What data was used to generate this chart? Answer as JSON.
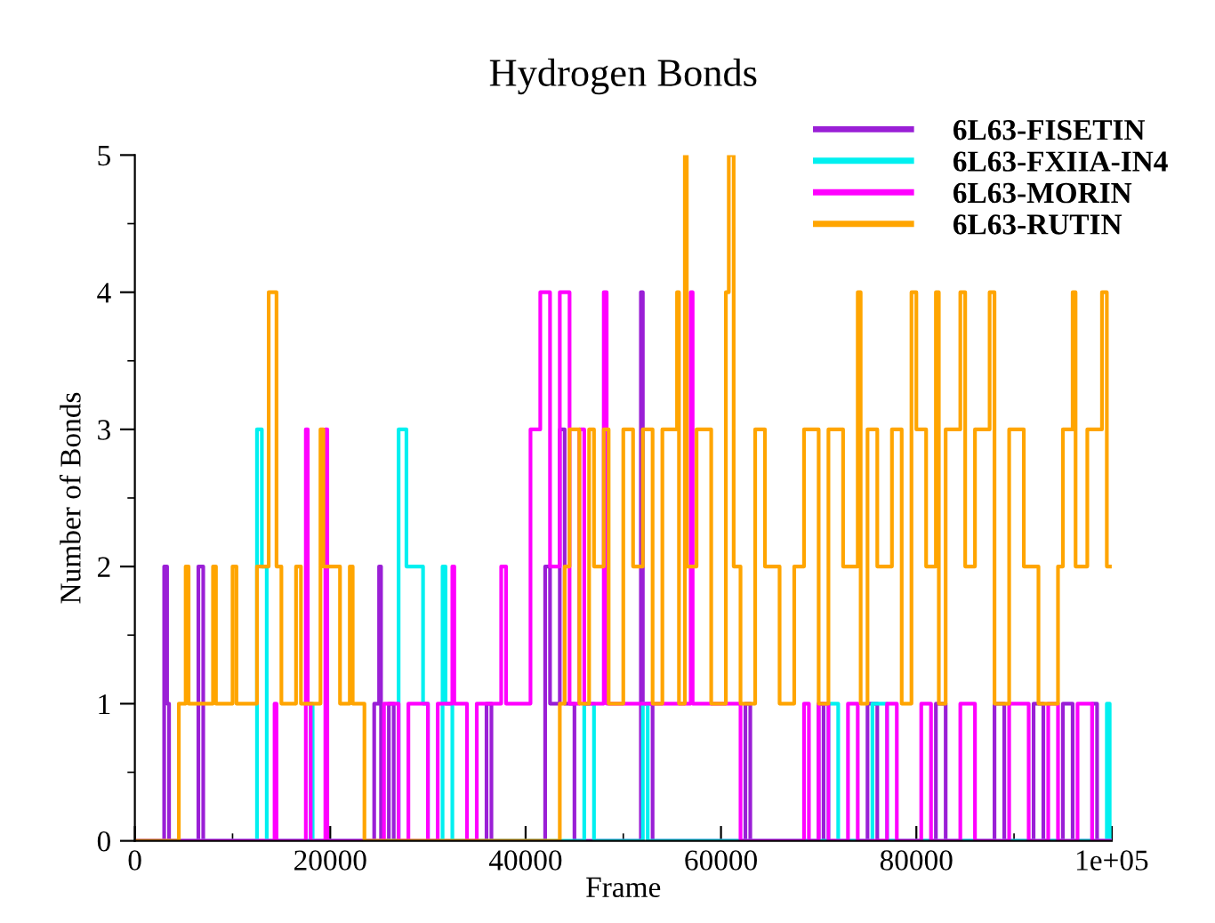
{
  "chart_data": {
    "type": "step",
    "title": "Hydrogen Bonds",
    "xlabel": "Frame",
    "ylabel": "Number of Bonds",
    "xlim": [
      0,
      100000
    ],
    "ylim": [
      0,
      5
    ],
    "xticks": [
      0,
      {
        "value": 10000,
        "label": null
      },
      20000,
      {
        "value": 30000,
        "label": null
      },
      40000,
      {
        "value": 50000,
        "label": null
      },
      60000,
      {
        "value": 70000,
        "label": null
      },
      80000,
      {
        "value": 90000,
        "label": null
      },
      {
        "value": 100000,
        "label": "1e+05"
      }
    ],
    "yticks": [
      0,
      {
        "value": 0.5,
        "label": null
      },
      1,
      {
        "value": 1.5,
        "label": null
      },
      2,
      {
        "value": 2.5,
        "label": null
      },
      3,
      {
        "value": 3.5,
        "label": null
      },
      4,
      {
        "value": 4.5,
        "label": null
      },
      5
    ],
    "grid": false,
    "legend": "top right",
    "series": [
      {
        "name": "6L63-FISETIN",
        "color": "#9a1fd6",
        "x": [
          0,
          3000,
          3300,
          3500,
          6500,
          7000,
          24500,
          25000,
          25200,
          26000,
          26500,
          36000,
          36500,
          42000,
          42500,
          43500,
          44000,
          45000,
          51800,
          52000,
          53000,
          62500,
          63000,
          70000,
          70500,
          75000,
          76000,
          82000,
          83000,
          88000,
          89000,
          92000,
          93000,
          95000,
          96000,
          98000,
          98500,
          100000
        ],
        "values": [
          0,
          2,
          1,
          0,
          2,
          0,
          1,
          2,
          0,
          1,
          0,
          1,
          0,
          2,
          1,
          3,
          1,
          0,
          4,
          1,
          0,
          1,
          0,
          1,
          0,
          1,
          0,
          1,
          0,
          1,
          0,
          1,
          0,
          1,
          0,
          1,
          0,
          0
        ]
      },
      {
        "name": "6L63-FXIIA-IN4",
        "color": "#00f0f0",
        "x": [
          0,
          12500,
          13000,
          13500,
          18000,
          18200,
          27000,
          27800,
          29500,
          30000,
          31500,
          31800,
          32500,
          46000,
          47000,
          52000,
          52500,
          71000,
          72000,
          75500,
          77000,
          99500,
          99800,
          100000
        ],
        "values": [
          0,
          3,
          2,
          0,
          1,
          0,
          3,
          2,
          1,
          0,
          2,
          1,
          0,
          1,
          0,
          1,
          0,
          1,
          0,
          1,
          0,
          1,
          0,
          0
        ]
      },
      {
        "name": "6L63-MORIN",
        "color": "#ff00ff",
        "x": [
          0,
          14300,
          14500,
          17500,
          17700,
          18000,
          19500,
          19700,
          25500,
          27000,
          28000,
          30000,
          31000,
          32500,
          32700,
          34000,
          35000,
          37500,
          38000,
          40500,
          41500,
          42500,
          43500,
          44500,
          45500,
          46000,
          48000,
          48300,
          56900,
          57100,
          62000,
          68500,
          69000,
          70000,
          71000,
          73000,
          74000,
          77000,
          78000,
          80500,
          81500,
          84500,
          86000,
          89500,
          91500,
          93500,
          94500,
          96500,
          98000,
          100000
        ],
        "values": [
          0,
          1,
          0,
          3,
          1,
          0,
          3,
          0,
          1,
          0,
          1,
          0,
          1,
          2,
          1,
          0,
          1,
          2,
          1,
          3,
          4,
          2,
          4,
          1,
          3,
          1,
          4,
          1,
          4,
          1,
          0,
          1,
          0,
          1,
          0,
          1,
          0,
          1,
          0,
          1,
          0,
          1,
          0,
          1,
          0,
          1,
          0,
          1,
          0,
          0
        ]
      },
      {
        "name": "6L63-RUTIN",
        "color": "#ffa500",
        "x": [
          0,
          4500,
          5200,
          5500,
          8000,
          8300,
          10000,
          10400,
          12500,
          13700,
          14500,
          15000,
          16500,
          17000,
          19000,
          19300,
          21000,
          22000,
          22300,
          23500,
          43500,
          44000,
          44500,
          45500,
          46500,
          47000,
          48000,
          48500,
          50000,
          51000,
          52000,
          53000,
          54000,
          55500,
          55700,
          56300,
          56500,
          57500,
          59000,
          60500,
          60800,
          61300,
          62000,
          63500,
          64500,
          66000,
          67500,
          68500,
          70000,
          71000,
          72500,
          74000,
          74300,
          75000,
          76000,
          77500,
          78500,
          79500,
          80000,
          81000,
          82000,
          82300,
          83000,
          84500,
          85000,
          86000,
          87500,
          88000,
          89500,
          91000,
          92500,
          94500,
          95000,
          96000,
          96300,
          97500,
          99000,
          99500,
          100000
        ],
        "values": [
          0,
          1,
          2,
          1,
          2,
          1,
          2,
          1,
          2,
          4,
          2,
          1,
          2,
          1,
          3,
          2,
          1,
          2,
          1,
          0,
          1,
          2,
          3,
          1,
          3,
          2,
          3,
          1,
          3,
          2,
          3,
          1,
          3,
          4,
          1,
          5,
          2,
          3,
          1,
          4,
          5,
          2,
          1,
          3,
          2,
          1,
          2,
          3,
          1,
          3,
          2,
          4,
          1,
          3,
          2,
          3,
          1,
          4,
          3,
          2,
          4,
          1,
          3,
          4,
          2,
          3,
          4,
          1,
          3,
          2,
          1,
          2,
          3,
          4,
          2,
          3,
          4,
          2,
          2
        ]
      }
    ]
  }
}
